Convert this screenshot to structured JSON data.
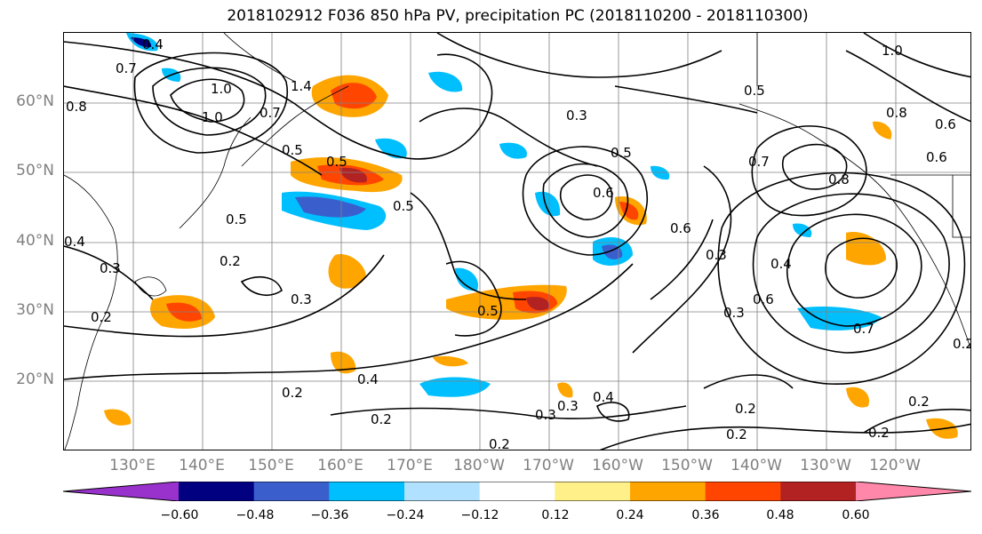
{
  "title": "2018102912 F036 850 hPa PV, precipitation PC (2018110200 - 2018110300)",
  "lat_labels": [
    "60°N",
    "50°N",
    "40°N",
    "30°N",
    "20°N"
  ],
  "lon_labels": [
    "130°E",
    "140°E",
    "150°E",
    "160°E",
    "170°E",
    "180°W",
    "170°W",
    "160°W",
    "150°W",
    "140°W",
    "130°W",
    "120°W"
  ],
  "contour_labels": [
    "0.4",
    "0.7",
    "1.0",
    "0.8",
    "1.4",
    "0.7",
    "1.0",
    "0.5",
    "0.5",
    "0.5",
    "0.2",
    "0.3",
    "0.2",
    "0.3",
    "0.5",
    "0.4",
    "0.5",
    "0.3",
    "0.5",
    "0.6",
    "0.6",
    "0.3",
    "0.4",
    "0.6",
    "0.7",
    "0.7",
    "0.5",
    "0.3",
    "0.6",
    "0.8",
    "1.0",
    "0.6",
    "0.2",
    "0.2",
    "0.4",
    "0.2",
    "0.3",
    "0.2",
    "0.3",
    "0.4",
    "0.2",
    "0.2",
    "0.2",
    "0.2",
    "0.8"
  ],
  "colorbar": {
    "labels": [
      "−0.60",
      "−0.48",
      "−0.36",
      "−0.24",
      "−0.12",
      "0.12",
      "0.24",
      "0.36",
      "0.48",
      "0.60"
    ],
    "colors": [
      "#9932cc",
      "#000080",
      "#3a5fcd",
      "#00bfff",
      "#b0e2ff",
      "#ffffff",
      "#fff08a",
      "#ffa500",
      "#ff4500",
      "#b22222",
      "#ff88aa"
    ]
  }
}
